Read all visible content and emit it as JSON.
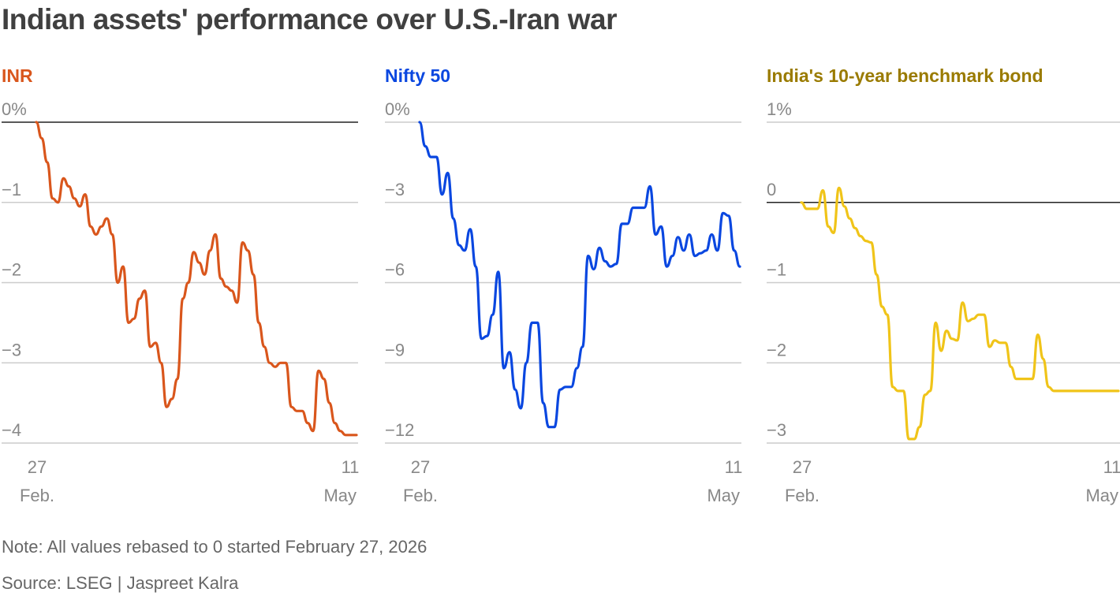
{
  "title": "Indian assets' performance over U.S.-Iran war",
  "note": "Note: All values rebased to 0 started February 27, 2026",
  "source": "Source: LSEG | Jaspreet Kalra",
  "chart_data": [
    {
      "type": "line",
      "title": "INR",
      "color": "#d9561c",
      "y_tick_labels": [
        "0%",
        "−1",
        "−2",
        "−3",
        "−4"
      ],
      "y_ticks": [
        0,
        -1,
        -2,
        -3,
        -4
      ],
      "ylim": [
        -4.15,
        0.15
      ],
      "x_tick_labels": [
        [
          "27",
          "Feb."
        ],
        [
          "11",
          "May"
        ]
      ],
      "x_range": [
        "2026-02-27",
        "2026-05-11"
      ],
      "grid": true,
      "zero_line": true,
      "series": [
        {
          "x": [
            "2026-02-27",
            "2026-02-28",
            "2026-03-01",
            "2026-03-02",
            "2026-03-03",
            "2026-03-04",
            "2026-03-05",
            "2026-03-06",
            "2026-03-07",
            "2026-03-08",
            "2026-03-09",
            "2026-03-10",
            "2026-03-11",
            "2026-03-12",
            "2026-03-13",
            "2026-03-14",
            "2026-03-15",
            "2026-03-16",
            "2026-03-17",
            "2026-03-18",
            "2026-03-19",
            "2026-03-20",
            "2026-03-21",
            "2026-03-22",
            "2026-03-23",
            "2026-03-24",
            "2026-03-25",
            "2026-03-26",
            "2026-03-27",
            "2026-03-28",
            "2026-03-29",
            "2026-03-30",
            "2026-03-31",
            "2026-04-01",
            "2026-04-02",
            "2026-04-03",
            "2026-04-04",
            "2026-04-05",
            "2026-04-06",
            "2026-04-07",
            "2026-04-08",
            "2026-04-09",
            "2026-04-10",
            "2026-04-11",
            "2026-04-12",
            "2026-04-13",
            "2026-04-14",
            "2026-04-15",
            "2026-04-16",
            "2026-04-17",
            "2026-04-18",
            "2026-04-19",
            "2026-04-20",
            "2026-04-21",
            "2026-04-22",
            "2026-04-23",
            "2026-04-24",
            "2026-04-25",
            "2026-04-26",
            "2026-04-27",
            "2026-04-28",
            "2026-04-29",
            "2026-04-30",
            "2026-05-01",
            "2026-05-02",
            "2026-05-03",
            "2026-05-04",
            "2026-05-05",
            "2026-05-06",
            "2026-05-07",
            "2026-05-08",
            "2026-05-09",
            "2026-05-10",
            "2026-05-11"
          ],
          "y": [
            0.0,
            -0.2,
            -0.5,
            -0.95,
            -1.0,
            -0.7,
            -0.8,
            -0.95,
            -1.05,
            -0.9,
            -1.3,
            -1.4,
            -1.3,
            -1.2,
            -1.4,
            -2.0,
            -1.8,
            -2.5,
            -2.45,
            -2.2,
            -2.1,
            -2.8,
            -2.75,
            -3.0,
            -3.55,
            -3.45,
            -3.2,
            -2.2,
            -2.0,
            -1.62,
            -1.75,
            -1.9,
            -1.6,
            -1.4,
            -1.95,
            -2.05,
            -2.1,
            -2.25,
            -1.5,
            -1.6,
            -1.9,
            -2.5,
            -2.8,
            -3.0,
            -3.05,
            -3.0,
            -3.0,
            -3.55,
            -3.6,
            -3.6,
            -3.75,
            -3.85,
            -3.1,
            -3.2,
            -3.5,
            -3.75,
            -3.85,
            -3.9,
            -3.9,
            -3.9,
            -3.9,
            -3.9,
            -3.9,
            -3.9,
            -3.9,
            -3.9,
            -3.9,
            -3.9,
            -3.9,
            -3.9,
            -3.9,
            -3.9,
            -3.9,
            -3.9
          ]
        }
      ]
    },
    {
      "type": "line",
      "title": "Nifty 50",
      "color": "#0a47e0",
      "y_tick_labels": [
        "0%",
        "−3",
        "−6",
        "−9",
        "−12"
      ],
      "y_ticks": [
        0,
        -3,
        -6,
        -9,
        -12
      ],
      "ylim": [
        -12.45,
        0.45
      ],
      "x_tick_labels": [
        [
          "27",
          "Feb."
        ],
        [
          "11",
          "May"
        ]
      ],
      "x_range": [
        "2026-02-27",
        "2026-05-11"
      ],
      "grid": true,
      "zero_line": false,
      "series": [
        {
          "x": [
            0,
            1,
            2,
            3,
            4,
            5,
            6,
            7,
            8,
            9,
            10,
            11,
            12,
            13,
            14,
            15,
            16,
            17,
            18,
            19,
            20,
            21,
            22,
            23,
            24,
            25,
            26,
            27,
            28,
            29,
            30,
            31,
            32,
            33,
            34,
            35,
            36,
            37,
            38,
            39,
            40,
            41,
            42,
            43,
            44,
            45,
            46,
            47,
            48,
            49,
            50,
            51,
            52,
            53,
            54,
            55,
            56,
            57,
            58,
            59,
            60,
            61,
            62,
            63,
            64,
            65,
            66,
            67,
            68,
            69,
            70,
            71,
            72,
            73
          ],
          "y": [
            0.0,
            -0.9,
            -1.3,
            -1.3,
            -2.7,
            -1.9,
            -3.6,
            -4.6,
            -4.8,
            -4.0,
            -5.4,
            -8.1,
            -8.0,
            -7.2,
            -5.6,
            -9.2,
            -8.6,
            -10.0,
            -10.7,
            -9.0,
            -7.5,
            -7.5,
            -10.5,
            -11.4,
            -11.4,
            -10.0,
            -9.9,
            -9.9,
            -9.2,
            -8.4,
            -5.0,
            -5.5,
            -4.7,
            -5.2,
            -5.4,
            -5.3,
            -3.8,
            -3.8,
            -3.2,
            -3.2,
            -3.2,
            -2.4,
            -4.2,
            -3.9,
            -5.4,
            -5.0,
            -4.3,
            -4.8,
            -4.2,
            -5.0,
            -4.9,
            -4.8,
            -4.2,
            -4.8,
            -3.4,
            -3.5,
            -4.8,
            -5.4,
            -5.4,
            -5.4,
            -5.4,
            -5.4,
            -5.4,
            -5.4,
            -5.4,
            -5.4,
            -5.4,
            -5.4,
            -5.4,
            -5.4,
            -5.4,
            -5.4,
            -5.4,
            -5.4
          ]
        }
      ]
    },
    {
      "type": "line",
      "title": "India's 10-year benchmark bond",
      "color": "#f0c419",
      "y_tick_labels": [
        "1%",
        "0",
        "−1",
        "−2",
        "−3"
      ],
      "y_ticks": [
        1,
        0,
        -1,
        -2,
        -3
      ],
      "ylim": [
        -3.15,
        1.15
      ],
      "x_tick_labels": [
        [
          "27",
          "Feb."
        ],
        [
          "11",
          "May"
        ]
      ],
      "x_range": [
        "2026-02-27",
        "2026-05-11"
      ],
      "grid": true,
      "zero_line": true,
      "series": [
        {
          "x": [
            0,
            1,
            2,
            3,
            4,
            5,
            6,
            7,
            8,
            9,
            10,
            11,
            12,
            13,
            14,
            15,
            16,
            17,
            18,
            19,
            20,
            21,
            22,
            23,
            24,
            25,
            26,
            27,
            28,
            29,
            30,
            31,
            32,
            33,
            34,
            35,
            36,
            37,
            38,
            39,
            40,
            41,
            42,
            43,
            44,
            45,
            46,
            47,
            48,
            49,
            50,
            51,
            52,
            53,
            54,
            55,
            56,
            57,
            58,
            59,
            60,
            61,
            62,
            63,
            64,
            65,
            66,
            67,
            68,
            69,
            70,
            71,
            72,
            73
          ],
          "y": [
            0.0,
            -0.08,
            -0.08,
            -0.08,
            0.15,
            -0.3,
            -0.38,
            0.18,
            -0.05,
            -0.2,
            -0.32,
            -0.42,
            -0.48,
            -0.5,
            -0.9,
            -1.3,
            -1.4,
            -2.3,
            -2.35,
            -2.35,
            -2.95,
            -2.95,
            -2.8,
            -2.4,
            -2.35,
            -1.5,
            -1.85,
            -1.6,
            -1.7,
            -1.72,
            -1.25,
            -1.48,
            -1.45,
            -1.4,
            -1.4,
            -1.8,
            -1.72,
            -1.75,
            -1.75,
            -2.05,
            -2.2,
            -2.2,
            -2.2,
            -2.2,
            -1.65,
            -1.95,
            -2.3,
            -2.35,
            -2.35,
            -2.35,
            -2.35,
            -2.35,
            -2.35,
            -2.35,
            -2.35,
            -2.35,
            -2.35,
            -2.35,
            -2.35,
            -2.35,
            -2.35,
            -2.35,
            -2.35,
            -2.35,
            -2.35,
            -2.35,
            -2.35,
            -2.35,
            -2.35,
            -2.35,
            -2.35,
            -2.35,
            -2.35,
            -2.35
          ]
        }
      ]
    }
  ],
  "colors": {
    "text": "#404040",
    "muted": "#888888",
    "grid": "#cccccc",
    "zero": "#222222",
    "inr_title": "#d9561c",
    "nifty_title": "#0a47e0",
    "bond_title": "#9a7b00"
  }
}
